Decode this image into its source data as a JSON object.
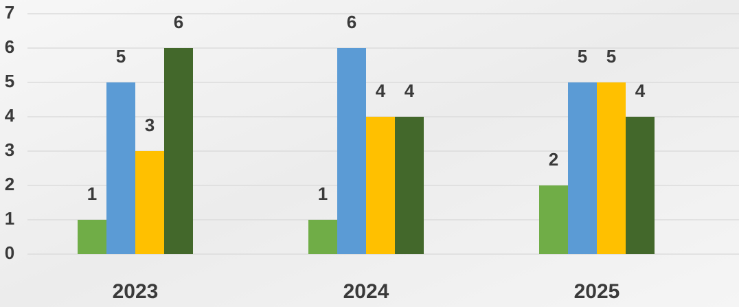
{
  "chart_data": {
    "type": "bar",
    "categories": [
      "2023",
      "2024",
      "2025"
    ],
    "series": [
      {
        "color": "#70ad47",
        "values": [
          1,
          1,
          2
        ]
      },
      {
        "color": "#5b9bd5",
        "values": [
          5,
          6,
          5
        ]
      },
      {
        "color": "#ffc000",
        "values": [
          3,
          4,
          5
        ]
      },
      {
        "color": "#43682b",
        "values": [
          6,
          4,
          4
        ]
      }
    ],
    "ylim": [
      0,
      7
    ],
    "yticks": [
      0,
      1,
      2,
      3,
      4,
      5,
      6,
      7
    ],
    "grid": true
  }
}
